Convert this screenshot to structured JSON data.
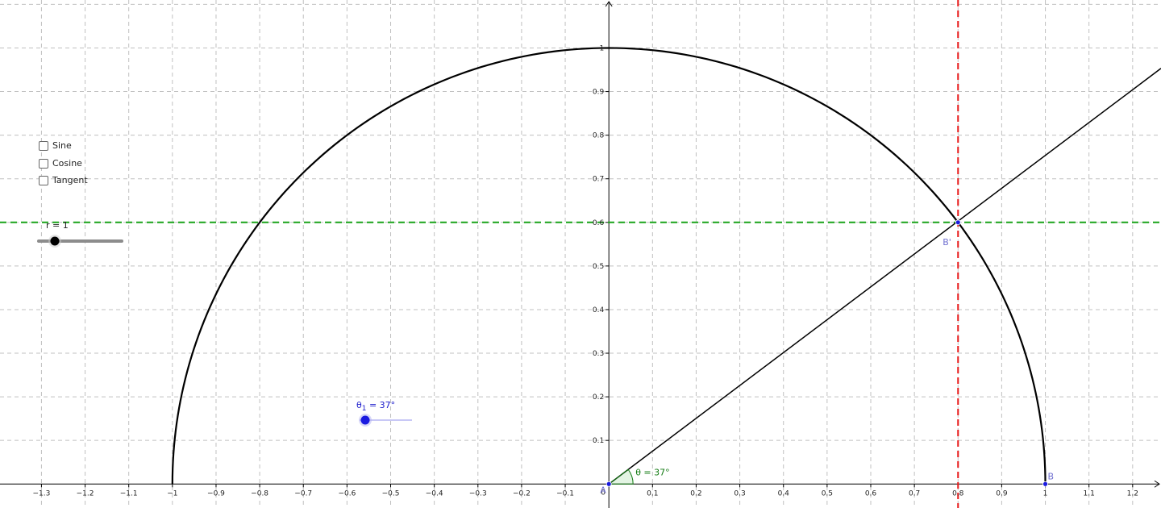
{
  "view": {
    "x_range": [
      -1.395,
      1.265
    ],
    "y_range": [
      -0.055,
      1.11
    ],
    "grid": true,
    "x_ticks": [
      -1.3,
      -1.2,
      -1.1,
      -1,
      -0.9,
      -0.8,
      -0.7,
      -0.6,
      -0.5,
      -0.4,
      -0.3,
      -0.2,
      -0.1,
      0.1,
      0.2,
      0.3,
      0.4,
      0.5,
      0.6,
      0.7,
      0.8,
      0.9,
      1,
      1.1,
      1.2
    ],
    "y_ticks": [
      0.1,
      0.2,
      0.3,
      0.4,
      0.5,
      0.6,
      0.7,
      0.8,
      0.9,
      1
    ],
    "origin_label": "0"
  },
  "checkboxes": [
    {
      "label": "Sine",
      "checked": false
    },
    {
      "label": "Cosine",
      "checked": false
    },
    {
      "label": "Tangent",
      "checked": false
    }
  ],
  "slider_r": {
    "label": "r = 1",
    "value": 1,
    "min": 0,
    "max": 1
  },
  "slider_theta": {
    "label_symbol": "θ",
    "label_sub": "1",
    "label_value": " = 37°",
    "value": 37,
    "min": 37,
    "max": 90
  },
  "angle": {
    "label": "θ = 37°",
    "degrees": 37
  },
  "points": {
    "A": {
      "label": "A",
      "x": 0,
      "y": 0
    },
    "B": {
      "label": "B",
      "x": 1,
      "y": 0
    },
    "B_prime": {
      "label": "B'",
      "x": 0.8,
      "y": 0.6
    }
  },
  "circle": {
    "radius": 1
  },
  "lines": {
    "sine_level_y": 0.6,
    "cosine_level_x": 0.8
  },
  "colors": {
    "grid": "#c0c0c0",
    "axis": "#000000",
    "curve": "#000000",
    "green": "#1aa31a",
    "red": "#e81919",
    "blue": "#1a1ae0",
    "point_label": "#7070d0",
    "angle_label": "#127a12",
    "slider_track": "#8c8c8c",
    "theta_track": "#a8a8f0"
  }
}
